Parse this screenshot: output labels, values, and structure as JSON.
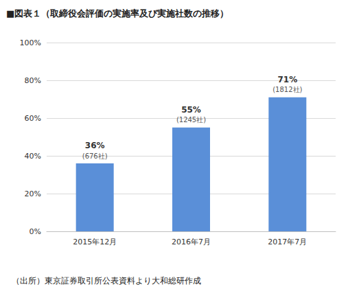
{
  "chart_data": {
    "type": "bar",
    "title": "■図表１（取締役会評価の実施率及び実施社数の推移）",
    "source": "（出所）東京証券取引所公表資料より大和総研作成",
    "categories": [
      "2015年12月",
      "2016年7月",
      "2017年7月"
    ],
    "values": [
      36,
      55,
      71
    ],
    "value_labels": [
      "36%",
      "55%",
      "71%"
    ],
    "count_labels": [
      "(676社)",
      "(1245社)",
      "(1812社)"
    ],
    "color": "#5a8fd8",
    "ylim": [
      0,
      100
    ],
    "yticks": [
      {
        "value": 0,
        "label": "0%"
      },
      {
        "value": 20,
        "label": "20%"
      },
      {
        "value": 40,
        "label": "40%"
      },
      {
        "value": 60,
        "label": "60%"
      },
      {
        "value": 80,
        "label": "80%"
      },
      {
        "value": 100,
        "label": "100%"
      }
    ],
    "grid": true,
    "data_labels": true
  }
}
